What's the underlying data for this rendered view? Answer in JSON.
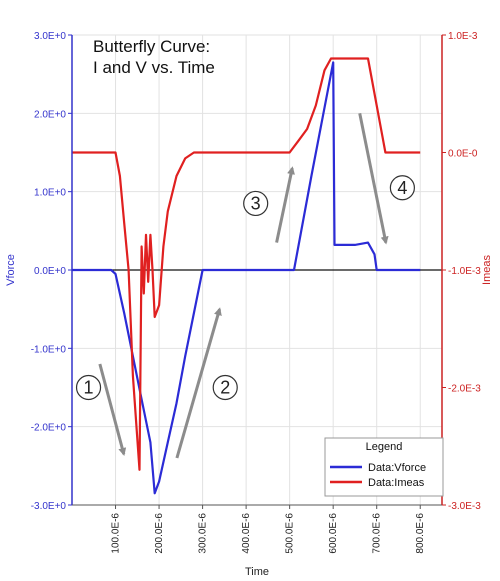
{
  "chart_data": {
    "type": "line",
    "title_lines": [
      "Butterfly Curve:",
      "I and V vs. Time"
    ],
    "xlabel": "Time",
    "ylabel_left": "Vforce",
    "ylabel_right": "Imeas",
    "xlim": [
      0,
      0.00085
    ],
    "ylim_left": [
      -3.0,
      3.0
    ],
    "ylim_right": [
      -0.003,
      0.001
    ],
    "x_ticks": [
      {
        "value": 0.0001,
        "label": "100.0E-6"
      },
      {
        "value": 0.0002,
        "label": "200.0E-6"
      },
      {
        "value": 0.0003,
        "label": "300.0E-6"
      },
      {
        "value": 0.0004,
        "label": "400.0E-6"
      },
      {
        "value": 0.0005,
        "label": "500.0E-6"
      },
      {
        "value": 0.0006,
        "label": "600.0E-6"
      },
      {
        "value": 0.0007,
        "label": "700.0E-6"
      },
      {
        "value": 0.0008,
        "label": "800.0E-6"
      }
    ],
    "y_ticks_left": [
      {
        "value": 3.0,
        "label": "3.0E+0"
      },
      {
        "value": 2.0,
        "label": "2.0E+0"
      },
      {
        "value": 1.0,
        "label": "1.0E+0"
      },
      {
        "value": 0.0,
        "label": "0.0E+0"
      },
      {
        "value": -1.0,
        "label": "-1.0E+0"
      },
      {
        "value": -2.0,
        "label": "-2.0E+0"
      },
      {
        "value": -3.0,
        "label": "-3.0E+0"
      }
    ],
    "y_ticks_right": [
      {
        "value": 0.001,
        "label": "1.0E-3"
      },
      {
        "value": 0.0,
        "label": "0.0E-0"
      },
      {
        "value": -0.001,
        "label": "-1.0E-3"
      },
      {
        "value": -0.002,
        "label": "-2.0E-3"
      },
      {
        "value": -0.003,
        "label": "-3.0E-3"
      }
    ],
    "grid": true,
    "legend": {
      "title": "Legend",
      "position": "bottom-right",
      "entries": [
        "Data:Vforce",
        "Data:Imeas"
      ]
    },
    "colors": {
      "Vforce": "#2b2bd6",
      "Imeas": "#e02020",
      "arrow": "#8c8c8c"
    },
    "series": [
      {
        "name": "Data:Vforce",
        "axis": "left",
        "x": [
          0,
          9e-05,
          0.0001,
          0.00012,
          0.00014,
          0.00016,
          0.00018,
          0.00019,
          0.0002,
          0.00022,
          0.00024,
          0.00026,
          0.00028,
          0.0003,
          0.00035,
          0.0004,
          0.00045,
          0.0005,
          0.00051,
          0.00055,
          0.0006,
          0.000603,
          0.00065,
          0.00068,
          0.000695,
          0.0007,
          0.00075,
          0.0008
        ],
        "y": [
          0.0,
          0.0,
          -0.05,
          -0.55,
          -1.1,
          -1.65,
          -2.2,
          -2.85,
          -2.7,
          -2.2,
          -1.7,
          -1.1,
          -0.55,
          0.0,
          0.0,
          0.0,
          0.0,
          0.0,
          0.0,
          1.2,
          2.65,
          0.32,
          0.32,
          0.35,
          0.2,
          0.0,
          0.0,
          0.0
        ]
      },
      {
        "name": "Data:Imeas",
        "axis": "right",
        "x": [
          0,
          0.0001,
          0.00011,
          0.00012,
          0.00013,
          0.00014,
          0.000155,
          0.00016,
          0.000165,
          0.00017,
          0.000175,
          0.00018,
          0.000185,
          0.00019,
          0.0002,
          0.00021,
          0.00022,
          0.00024,
          0.00026,
          0.00028,
          0.0003,
          0.0005,
          0.00052,
          0.00054,
          0.00056,
          0.00058,
          0.000595,
          0.0006,
          0.00065,
          0.00068,
          0.0007,
          0.00072,
          0.0008
        ],
        "y": [
          0.0,
          0.0,
          -0.0002,
          -0.0006,
          -0.001,
          -0.0019,
          -0.0027,
          -0.0008,
          -0.0012,
          -0.0007,
          -0.0011,
          -0.0007,
          -0.001,
          -0.0014,
          -0.0013,
          -0.0008,
          -0.0005,
          -0.0002,
          -5e-05,
          0.0,
          0.0,
          0.0,
          0.0001,
          0.0002,
          0.0004,
          0.0007,
          0.0008,
          0.0008,
          0.0008,
          0.0008,
          0.0004,
          0.0,
          0.0
        ]
      }
    ],
    "annotations": [
      {
        "label": "1",
        "arrow_from": [
          6.4e-05,
          -1.2
        ],
        "arrow_to": [
          0.000119,
          -2.35
        ],
        "number_at": [
          3.8e-05,
          -1.5
        ]
      },
      {
        "label": "2",
        "arrow_from": [
          0.000241,
          -2.4
        ],
        "arrow_to": [
          0.000339,
          -0.5
        ],
        "number_at": [
          0.000352,
          -1.5
        ]
      },
      {
        "label": "3",
        "arrow_from": [
          0.00047,
          0.35
        ],
        "arrow_to": [
          0.000506,
          1.3
        ],
        "number_at": [
          0.000422,
          0.85
        ]
      },
      {
        "label": "4",
        "arrow_from": [
          0.000661,
          2.0
        ],
        "arrow_to": [
          0.000721,
          0.35
        ],
        "number_at": [
          0.000759,
          1.05
        ]
      }
    ]
  }
}
